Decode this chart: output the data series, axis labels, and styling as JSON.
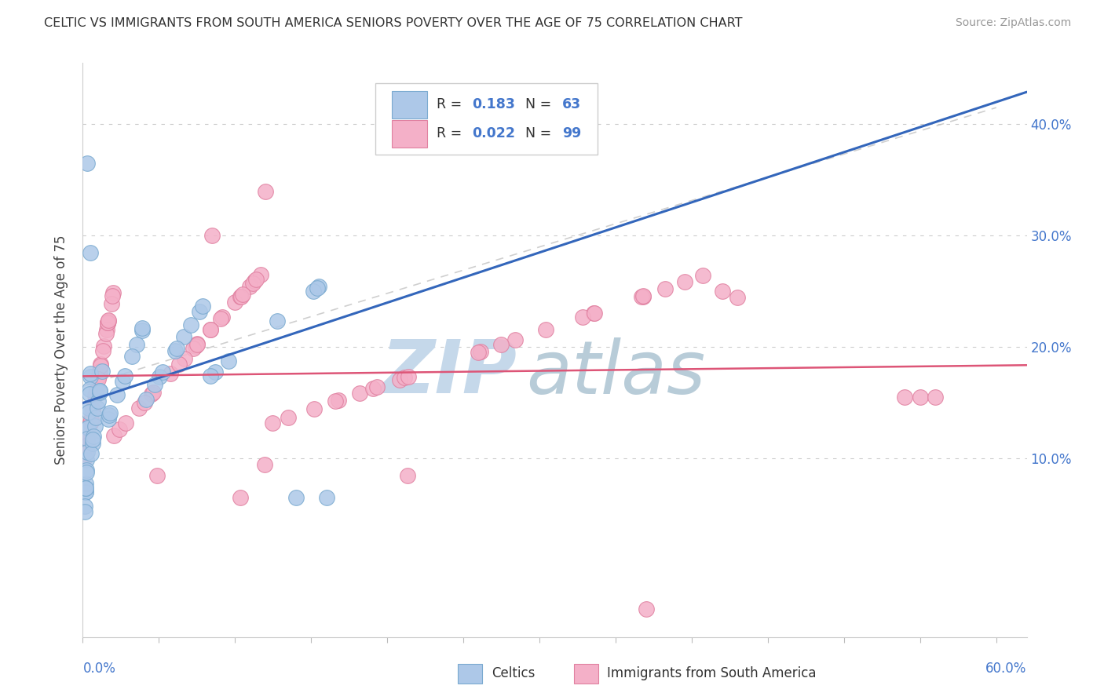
{
  "title": "CELTIC VS IMMIGRANTS FROM SOUTH AMERICA SENIORS POVERTY OVER THE AGE OF 75 CORRELATION CHART",
  "source": "Source: ZipAtlas.com",
  "ylabel": "Seniors Poverty Over the Age of 75",
  "legend_label1": "Celtics",
  "legend_label2": "Immigrants from South America",
  "xlim": [
    0.0,
    0.62
  ],
  "ylim": [
    -0.06,
    0.455
  ],
  "yticks": [
    0.0,
    0.1,
    0.2,
    0.3,
    0.4
  ],
  "ytick_right_labels": [
    "",
    "10.0%",
    "20.0%",
    "30.0%",
    "40.0%"
  ],
  "R_celtic": 0.183,
  "N_celtic": 63,
  "R_south_america": 0.022,
  "N_south_america": 99,
  "celtic_face": "#adc8e8",
  "celtic_edge": "#7aaad0",
  "sa_face": "#f4b0c8",
  "sa_edge": "#e080a0",
  "trend_celtic": "#3366bb",
  "trend_sa": "#dd5577",
  "diag_color": "#bbbbbb",
  "watermark_color_zip": "#c5d8ea",
  "watermark_color_atlas": "#b8ccd8",
  "grid_color": "#cccccc",
  "bg_color": "#ffffff",
  "tick_color": "#4477cc",
  "title_color": "#333333",
  "source_color": "#999999",
  "legend_border": "#cccccc",
  "legend_text_color": "#333333"
}
